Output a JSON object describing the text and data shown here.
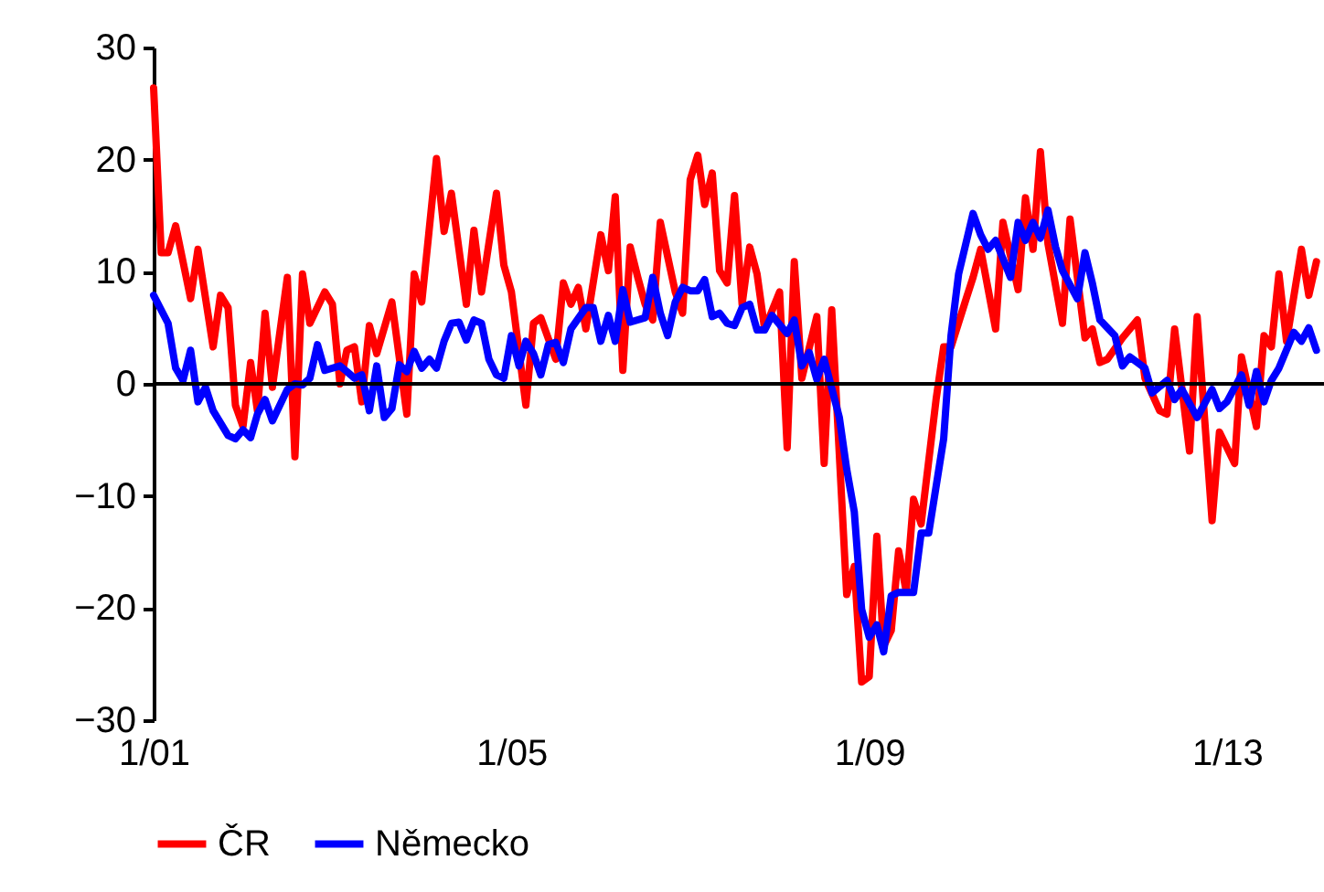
{
  "chart_data": {
    "type": "line",
    "xlim": [
      "2001-01",
      "2014-02"
    ],
    "xticks": [
      {
        "value": "2001-01",
        "label": "1/01"
      },
      {
        "value": "2005-01",
        "label": "1/05"
      },
      {
        "value": "2009-01",
        "label": "1/09"
      },
      {
        "value": "2013-01",
        "label": "1/13"
      }
    ],
    "ylim": [
      -30,
      30
    ],
    "yticks": [
      -30,
      -20,
      -10,
      0,
      10,
      20,
      30
    ],
    "grid": false,
    "legend": "bottom",
    "line_style": "solid",
    "marker": "none",
    "ref_lines": [
      {
        "axis": "y",
        "value": 0,
        "color": "#000000"
      }
    ],
    "series": [
      {
        "name": "ČR",
        "color": "#ff0000",
        "x": [
          "2001-01",
          "2001-02",
          "2001-03",
          "2001-04",
          "2001-06",
          "2001-07",
          "2001-09",
          "2001-10",
          "2001-11",
          "2001-12",
          "2002-01",
          "2002-02",
          "2002-03",
          "2002-04",
          "2002-05",
          "2002-07",
          "2002-08",
          "2002-09",
          "2002-10",
          "2002-12",
          "2003-01",
          "2003-02",
          "2003-03",
          "2003-04",
          "2003-05",
          "2003-06",
          "2003-07",
          "2003-09",
          "2003-11",
          "2003-12",
          "2004-01",
          "2004-03",
          "2004-04",
          "2004-05",
          "2004-07",
          "2004-08",
          "2004-09",
          "2004-11",
          "2004-12",
          "2005-01",
          "2005-03",
          "2005-04",
          "2005-05",
          "2005-07",
          "2005-08",
          "2005-09",
          "2005-10",
          "2005-11",
          "2006-01",
          "2006-02",
          "2006-03",
          "2006-04",
          "2006-05",
          "2006-06",
          "2006-07",
          "2006-08",
          "2006-09",
          "2006-11",
          "2006-12",
          "2007-01",
          "2007-02",
          "2007-03",
          "2007-04",
          "2007-05",
          "2007-06",
          "2007-07",
          "2007-08",
          "2007-09",
          "2007-10",
          "2007-11",
          "2008-01",
          "2008-02",
          "2008-03",
          "2008-04",
          "2008-06",
          "2008-07",
          "2008-08",
          "2008-10",
          "2008-11",
          "2008-12",
          "2009-01",
          "2009-02",
          "2009-03",
          "2009-04",
          "2009-05",
          "2009-06",
          "2009-07",
          "2009-08",
          "2009-10",
          "2009-11",
          "2009-12",
          "2010-02",
          "2010-03",
          "2010-04",
          "2010-06",
          "2010-07",
          "2010-09",
          "2010-10",
          "2010-11",
          "2010-12",
          "2011-01",
          "2011-03",
          "2011-04",
          "2011-06",
          "2011-07",
          "2011-08",
          "2011-09",
          "2011-11",
          "2012-01",
          "2012-02",
          "2012-04",
          "2012-05",
          "2012-06",
          "2012-08",
          "2012-09",
          "2012-11",
          "2012-12",
          "2013-02",
          "2013-03",
          "2013-05",
          "2013-06",
          "2013-07",
          "2013-08",
          "2013-09",
          "2013-11",
          "2013-12",
          "2014-01"
        ],
        "values": [
          26.4,
          11.7,
          11.7,
          14.1,
          7.6,
          12,
          3.3,
          7.9,
          6.8,
          -1.9,
          -3.8,
          1.9,
          -2.4,
          6.3,
          -0.3,
          9.5,
          -6.5,
          9.8,
          5.4,
          8.2,
          7.1,
          0,
          3,
          3.3,
          -1.6,
          5.2,
          2.7,
          7.3,
          -2.7,
          9.8,
          7.3,
          20.1,
          13.6,
          17,
          7.1,
          13.7,
          8.2,
          17,
          10.6,
          8.2,
          -1.9,
          5.4,
          5.9,
          2.2,
          9,
          7.1,
          8.6,
          4.9,
          13.3,
          10.1,
          16.7,
          1.2,
          12.2,
          9.5,
          7.1,
          5.7,
          14.4,
          8.2,
          6.3,
          18.2,
          20.4,
          16,
          18.8,
          10.1,
          9,
          16.8,
          7.1,
          12.2,
          9.8,
          4.9,
          8.2,
          -5.7,
          10.9,
          0.5,
          6,
          -7.1,
          6.6,
          -18.8,
          -16.3,
          -26.6,
          -26.1,
          -13.6,
          -23.4,
          -22,
          -14.9,
          -18.5,
          -10.3,
          -12.5,
          -1.4,
          3.3,
          3.3,
          7.6,
          9.5,
          12,
          4.9,
          14.4,
          8.4,
          16.6,
          12,
          20.7,
          12.5,
          5.4,
          14.7,
          4.1,
          4.9,
          1.9,
          2.2,
          4.1,
          5.7,
          0.5,
          -2.4,
          -2.7,
          4.9,
          -6,
          6,
          -12.2,
          -4.3,
          -7.1,
          2.4,
          -3.8,
          4.3,
          3.3,
          9.8,
          3.8,
          12,
          7.9,
          10.9
        ]
      },
      {
        "name": "Německo",
        "color": "#0000ff",
        "x": [
          "2001-01",
          "2001-03",
          "2001-04",
          "2001-05",
          "2001-06",
          "2001-07",
          "2001-08",
          "2001-09",
          "2001-11",
          "2001-12",
          "2002-01",
          "2002-02",
          "2002-03",
          "2002-04",
          "2002-05",
          "2002-07",
          "2002-08",
          "2002-09",
          "2002-10",
          "2002-11",
          "2002-12",
          "2003-02",
          "2003-03",
          "2003-04",
          "2003-05",
          "2003-06",
          "2003-07",
          "2003-08",
          "2003-09",
          "2003-10",
          "2003-11",
          "2003-12",
          "2004-01",
          "2004-02",
          "2004-03",
          "2004-04",
          "2004-05",
          "2004-06",
          "2004-07",
          "2004-08",
          "2004-09",
          "2004-10",
          "2004-11",
          "2004-12",
          "2005-01",
          "2005-02",
          "2005-03",
          "2005-04",
          "2005-05",
          "2005-06",
          "2005-07",
          "2005-08",
          "2005-09",
          "2005-11",
          "2005-12",
          "2006-01",
          "2006-02",
          "2006-03",
          "2006-04",
          "2006-05",
          "2006-07",
          "2006-08",
          "2006-09",
          "2006-10",
          "2006-11",
          "2006-12",
          "2007-01",
          "2007-02",
          "2007-03",
          "2007-04",
          "2007-05",
          "2007-06",
          "2007-07",
          "2007-08",
          "2007-09",
          "2007-10",
          "2007-11",
          "2007-12",
          "2008-02",
          "2008-03",
          "2008-04",
          "2008-05",
          "2008-06",
          "2008-07",
          "2008-09",
          "2008-10",
          "2008-11",
          "2008-12",
          "2009-01",
          "2009-02",
          "2009-03",
          "2009-04",
          "2009-05",
          "2009-07",
          "2009-08",
          "2009-09",
          "2009-11",
          "2009-12",
          "2010-01",
          "2010-03",
          "2010-04",
          "2010-05",
          "2010-06",
          "2010-08",
          "2010-09",
          "2010-10",
          "2010-11",
          "2010-12",
          "2011-01",
          "2011-02",
          "2011-03",
          "2011-05",
          "2011-06",
          "2011-07",
          "2011-08",
          "2011-10",
          "2011-11",
          "2011-12",
          "2012-02",
          "2012-03",
          "2012-05",
          "2012-06",
          "2012-07",
          "2012-09",
          "2012-11",
          "2012-12",
          "2013-01",
          "2013-03",
          "2013-04",
          "2013-05",
          "2013-06",
          "2013-07",
          "2013-08",
          "2013-10",
          "2013-11",
          "2013-12",
          "2014-01"
        ],
        "values": [
          7.9,
          5.4,
          1.4,
          0.3,
          3,
          -1.6,
          -0.3,
          -2.4,
          -4.6,
          -4.9,
          -4.1,
          -4.8,
          -2.7,
          -1.4,
          -3.3,
          -0.5,
          0,
          -0.1,
          0.5,
          3.5,
          1.2,
          1.6,
          1.1,
          0.5,
          0.8,
          -2.4,
          1.6,
          -3,
          -2.2,
          1.7,
          1.1,
          2.9,
          1.4,
          2.2,
          1.4,
          3.8,
          5.4,
          5.5,
          3.9,
          5.7,
          5.4,
          2.2,
          0.8,
          0.5,
          4.3,
          1.6,
          3.8,
          2.7,
          0.8,
          3.5,
          3.7,
          1.9,
          4.9,
          6.8,
          6.8,
          3.8,
          6.1,
          3.8,
          8.4,
          5.5,
          5.9,
          9.5,
          6.3,
          4.3,
          7.3,
          8.6,
          8.3,
          8.3,
          9.3,
          6,
          6.3,
          5.4,
          5.2,
          6.8,
          7.1,
          4.8,
          4.8,
          6.1,
          4.5,
          5.7,
          1.6,
          2.8,
          0.4,
          2.2,
          -3,
          -7.6,
          -11.4,
          -20.1,
          -22.6,
          -21.5,
          -23.9,
          -18.9,
          -18.6,
          -18.6,
          -13.3,
          -13.3,
          -4.9,
          4.3,
          9.8,
          15.2,
          13.3,
          12,
          12.8,
          9.5,
          14.4,
          12.8,
          14.4,
          13,
          15.5,
          12.2,
          10.1,
          7.6,
          11.7,
          9,
          5.7,
          4.3,
          1.6,
          2.4,
          1.4,
          -0.8,
          0.3,
          -1.4,
          -0.5,
          -3,
          -0.5,
          -2.2,
          -1.6,
          0.8,
          -1.9,
          1.1,
          -1.6,
          0.3,
          1.4,
          4.6,
          3.8,
          5,
          3
        ]
      }
    ]
  }
}
